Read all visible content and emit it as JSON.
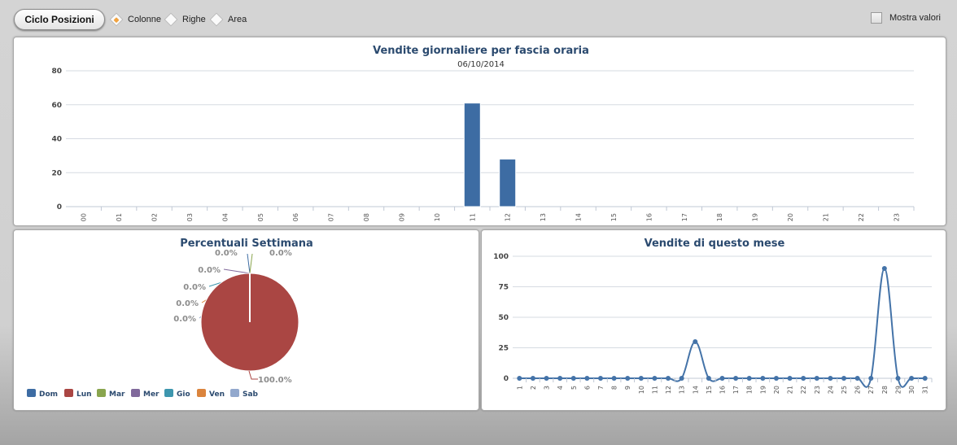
{
  "toolbar": {
    "cycle_button": "Ciclo Posizioni",
    "options": [
      {
        "label": "Colonne",
        "selected": true
      },
      {
        "label": "Righe",
        "selected": false
      },
      {
        "label": "Area",
        "selected": false
      }
    ],
    "show_values_label": "Mostra valori",
    "show_values_checked": false
  },
  "colors": {
    "bar": "#3d6ca3",
    "line": "#4473a8",
    "title": "#2b4a6f",
    "grid": "#d6dbe2"
  },
  "chart_data": [
    {
      "type": "bar",
      "title": "Vendite giornaliere per fascia oraria",
      "subtitle": "06/10/2014",
      "categories": [
        "00",
        "01",
        "02",
        "03",
        "04",
        "05",
        "06",
        "07",
        "08",
        "09",
        "10",
        "11",
        "12",
        "13",
        "14",
        "15",
        "16",
        "17",
        "18",
        "19",
        "20",
        "21",
        "22",
        "23"
      ],
      "values": [
        0,
        0,
        0,
        0,
        0,
        0,
        0,
        0,
        0,
        0,
        0,
        61,
        28,
        0,
        0,
        0,
        0,
        0,
        0,
        0,
        0,
        0,
        0,
        0
      ],
      "ylim": [
        0,
        80
      ],
      "yticks": [
        0,
        20,
        40,
        60,
        80
      ],
      "grid": true
    },
    {
      "type": "pie",
      "title": "Percentuali Settimana",
      "slices": [
        {
          "name": "Dom",
          "value": 0.0,
          "label": "0.0%",
          "color": "#3d6ca3"
        },
        {
          "name": "Lun",
          "value": 100.0,
          "label": "100.0%",
          "color": "#aa4643"
        },
        {
          "name": "Mar",
          "value": 0.0,
          "label": "0.0%",
          "color": "#89a54e"
        },
        {
          "name": "Mer",
          "value": 0.0,
          "label": "0.0%",
          "color": "#80699b"
        },
        {
          "name": "Gio",
          "value": 0.0,
          "label": "0.0%",
          "color": "#3d96ae"
        },
        {
          "name": "Ven",
          "value": 0.0,
          "label": "0.0%",
          "color": "#db843d"
        },
        {
          "name": "Sab",
          "value": 0.0,
          "label": "0.0%",
          "color": "#92a8cd"
        }
      ],
      "legend": "bottom-left"
    },
    {
      "type": "line",
      "title": "Vendite di questo mese",
      "x": [
        1,
        2,
        3,
        4,
        5,
        6,
        7,
        8,
        9,
        10,
        11,
        12,
        13,
        14,
        15,
        16,
        17,
        18,
        19,
        20,
        21,
        22,
        23,
        24,
        25,
        26,
        27,
        28,
        29,
        30,
        31
      ],
      "values": [
        0,
        0,
        0,
        0,
        0,
        0,
        0,
        0,
        0,
        0,
        0,
        0,
        0,
        30,
        0,
        0,
        0,
        0,
        0,
        0,
        0,
        0,
        0,
        0,
        0,
        0,
        0,
        90,
        0,
        0,
        0
      ],
      "ylim": [
        0,
        100
      ],
      "yticks": [
        0,
        25,
        50,
        75,
        100
      ],
      "grid": true
    }
  ]
}
